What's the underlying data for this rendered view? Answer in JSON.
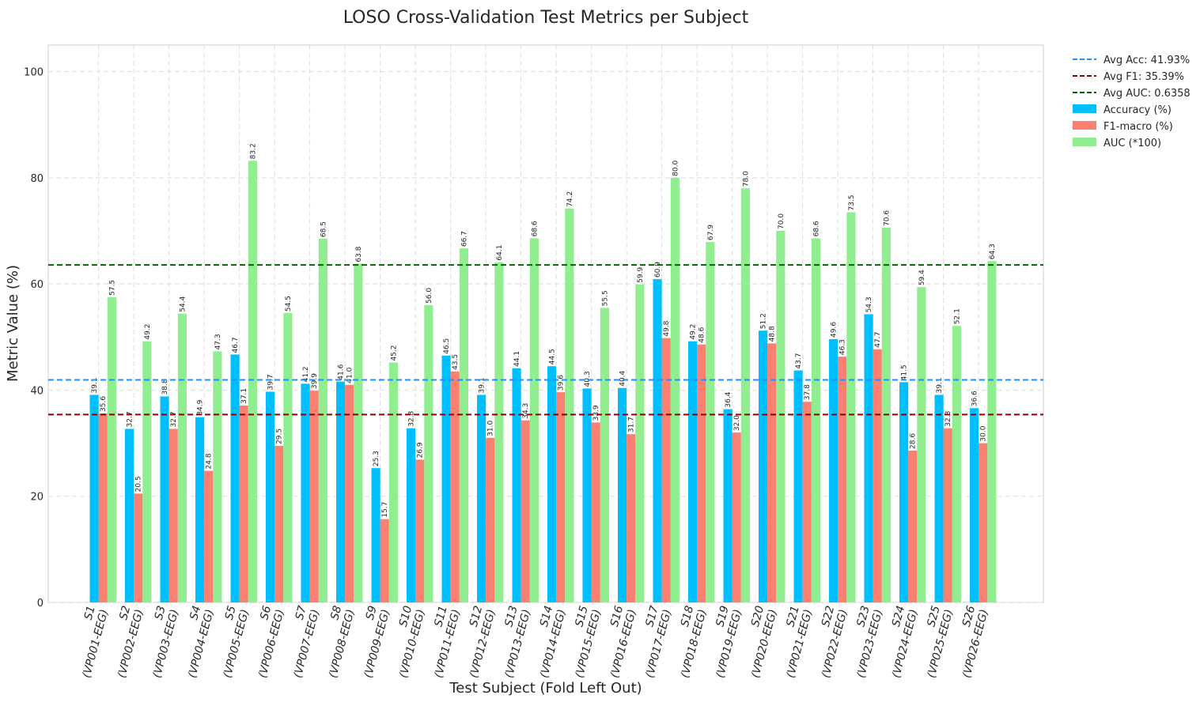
{
  "chart_data": {
    "type": "bar",
    "title": "LOSO Cross-Validation Test Metrics per Subject",
    "xlabel": "Test Subject (Fold Left Out)",
    "ylabel": "Metric Value (%)",
    "ylim": [
      0,
      105
    ],
    "yticks": [
      0,
      20,
      40,
      60,
      80,
      100
    ],
    "grid": true,
    "legend_position": "outside-top-right",
    "categories": [
      [
        "S1",
        "(VP001-EEG)"
      ],
      [
        "S2",
        "(VP002-EEG)"
      ],
      [
        "S3",
        "(VP003-EEG)"
      ],
      [
        "S4",
        "(VP004-EEG)"
      ],
      [
        "S5",
        "(VP005-EEG)"
      ],
      [
        "S6",
        "(VP006-EEG)"
      ],
      [
        "S7",
        "(VP007-EEG)"
      ],
      [
        "S8",
        "(VP008-EEG)"
      ],
      [
        "S9",
        "(VP009-EEG)"
      ],
      [
        "S10",
        "(VP010-EEG)"
      ],
      [
        "S11",
        "(VP011-EEG)"
      ],
      [
        "S12",
        "(VP012-EEG)"
      ],
      [
        "S13",
        "(VP013-EEG)"
      ],
      [
        "S14",
        "(VP014-EEG)"
      ],
      [
        "S15",
        "(VP015-EEG)"
      ],
      [
        "S16",
        "(VP016-EEG)"
      ],
      [
        "S17",
        "(VP017-EEG)"
      ],
      [
        "S18",
        "(VP018-EEG)"
      ],
      [
        "S19",
        "(VP019-EEG)"
      ],
      [
        "S20",
        "(VP020-EEG)"
      ],
      [
        "S21",
        "(VP021-EEG)"
      ],
      [
        "S22",
        "(VP022-EEG)"
      ],
      [
        "S23",
        "(VP023-EEG)"
      ],
      [
        "S24",
        "(VP024-EEG)"
      ],
      [
        "S25",
        "(VP025-EEG)"
      ],
      [
        "S26",
        "(VP026-EEG)"
      ]
    ],
    "series": [
      {
        "name": "Accuracy (%)",
        "color": "#00bfff",
        "values": [
          39.1,
          32.7,
          38.8,
          34.9,
          46.7,
          39.7,
          41.2,
          41.6,
          25.3,
          32.8,
          46.5,
          39.1,
          44.1,
          44.5,
          40.3,
          40.4,
          60.9,
          49.2,
          36.4,
          51.2,
          43.7,
          49.6,
          54.3,
          41.5,
          39.1,
          36.6
        ]
      },
      {
        "name": "F1-macro (%)",
        "color": "#fa8072",
        "values": [
          35.6,
          20.5,
          32.7,
          24.8,
          37.1,
          29.5,
          39.9,
          41.0,
          15.7,
          26.9,
          43.5,
          31.0,
          34.3,
          39.6,
          33.9,
          31.7,
          49.8,
          48.6,
          32.0,
          48.8,
          37.8,
          46.3,
          47.7,
          28.6,
          32.8,
          30.0
        ]
      },
      {
        "name": "AUC (*100)",
        "color": "#90ee90",
        "values": [
          57.5,
          49.2,
          54.4,
          47.3,
          83.2,
          54.5,
          68.5,
          63.8,
          45.2,
          56.0,
          66.7,
          64.1,
          68.6,
          74.2,
          55.5,
          59.9,
          80.0,
          67.9,
          78.0,
          70.0,
          68.6,
          73.5,
          70.6,
          59.4,
          52.1,
          64.3
        ]
      }
    ],
    "reference_lines": [
      {
        "name": "Avg Acc: 41.93%",
        "value": 41.93,
        "color": "#1e90ff"
      },
      {
        "name": "Avg F1: 35.39%",
        "value": 35.39,
        "color": "#8b0000"
      },
      {
        "name": "Avg AUC: 0.6358",
        "value": 63.58,
        "color": "#006400"
      }
    ]
  }
}
